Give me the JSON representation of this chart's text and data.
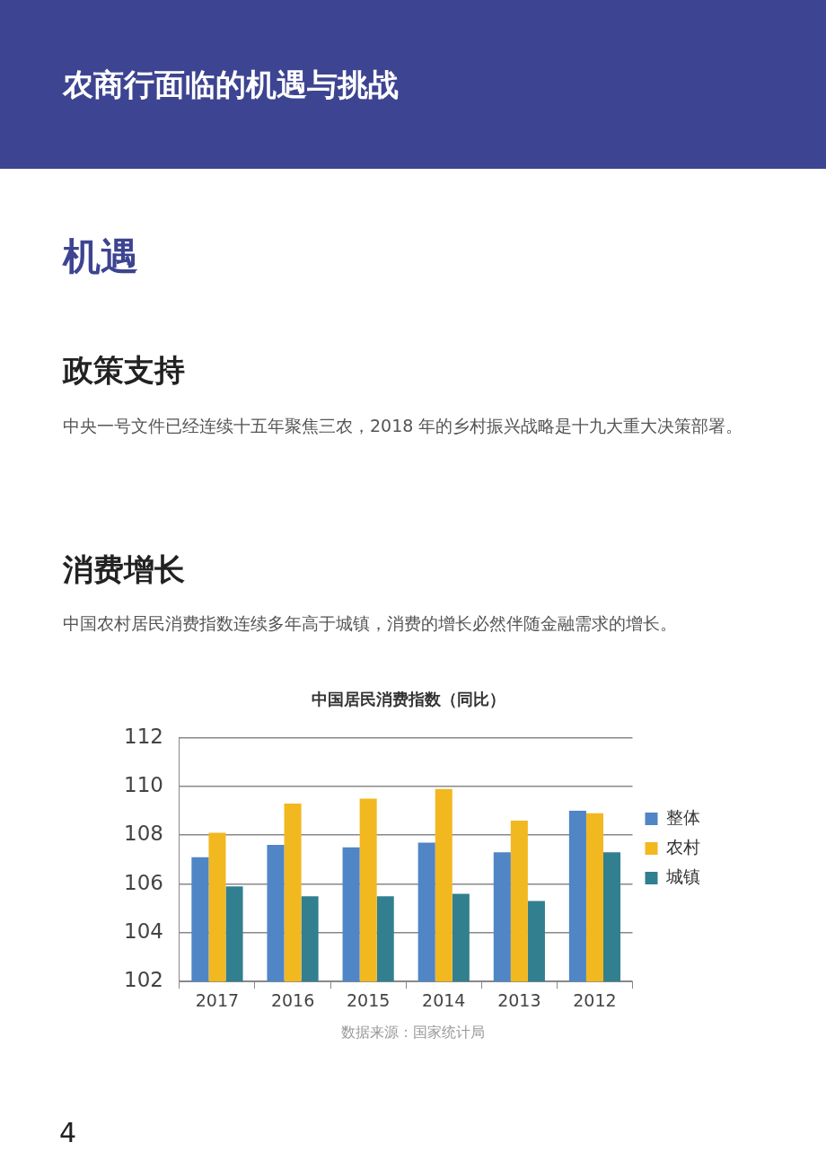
{
  "chart_data": {
    "type": "bar",
    "title": "中国居民消费指数（同比）",
    "categories": [
      "2017",
      "2016",
      "2015",
      "2014",
      "2013",
      "2012"
    ],
    "series": [
      {
        "name": "整体",
        "color": "#5085c6",
        "values": [
          107.1,
          107.6,
          107.5,
          107.7,
          107.3,
          109.0
        ]
      },
      {
        "name": "农村",
        "color": "#f2b81f",
        "values": [
          108.1,
          109.3,
          109.5,
          109.9,
          108.6,
          108.9
        ]
      },
      {
        "name": "城镇",
        "color": "#327f90",
        "values": [
          105.9,
          105.5,
          105.5,
          105.6,
          105.3,
          107.3
        ]
      }
    ],
    "ylim": [
      102,
      112
    ],
    "yticks": [
      102,
      104,
      106,
      108,
      110,
      112
    ],
    "grid": "y",
    "legend": "right",
    "annotations": [
      "农商行面临的机遇与挑战",
      "机遇",
      "政策支持",
      "中央一号文件已经连续十五年聚焦三农，2018 年的乡村振兴战略是十九大重大决策部署。",
      "消费增长",
      "中国农村居民消费指数连续多年高于城镇，消费的增长必然伴随金融需求的增长。",
      "数据来源：国家统计局",
      "4"
    ]
  }
}
